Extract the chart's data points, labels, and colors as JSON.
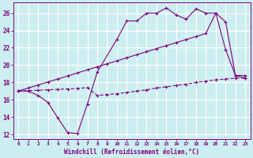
{
  "bg_color": "#cceef0",
  "grid_color": "#ffffff",
  "line_color": "#800080",
  "xlabel": "Windchill (Refroidissement éolien,°C)",
  "ylim": [
    11.5,
    27.2
  ],
  "xlim": [
    -0.5,
    23.5
  ],
  "yticks": [
    12,
    14,
    16,
    18,
    20,
    22,
    24,
    26
  ],
  "x_ticks": [
    0,
    1,
    2,
    3,
    4,
    5,
    6,
    7,
    8,
    9,
    10,
    11,
    12,
    13,
    14,
    15,
    16,
    17,
    18,
    19,
    20,
    21,
    22,
    23
  ],
  "wavy_x": [
    0,
    1,
    2,
    3,
    4,
    5,
    6,
    7,
    8,
    10,
    11,
    12,
    13,
    14,
    15,
    16,
    17,
    18,
    19,
    20,
    21,
    22,
    23
  ],
  "wavy_y": [
    17.0,
    17.0,
    16.5,
    15.7,
    13.9,
    12.2,
    12.1,
    15.5,
    19.2,
    23.0,
    25.1,
    25.1,
    26.0,
    26.0,
    26.6,
    25.8,
    25.3,
    26.5,
    26.0,
    26.0,
    21.8,
    18.8,
    18.8
  ],
  "upper_x": [
    0,
    1,
    2,
    3,
    4,
    5,
    6,
    7,
    8,
    9,
    10,
    11,
    12,
    13,
    14,
    15,
    16,
    17,
    18,
    19,
    20,
    21,
    22,
    23
  ],
  "upper_y": [
    17.0,
    17.35,
    17.7,
    18.05,
    18.4,
    18.75,
    19.1,
    19.45,
    19.8,
    20.15,
    20.5,
    20.85,
    21.2,
    21.55,
    21.9,
    22.25,
    22.6,
    22.95,
    23.3,
    23.65,
    26.0,
    25.0,
    18.8,
    18.5
  ],
  "lower_x": [
    0,
    1,
    2,
    3,
    4,
    5,
    6,
    7,
    8,
    9,
    10,
    11,
    12,
    13,
    14,
    15,
    16,
    17,
    18,
    19,
    20,
    21,
    22,
    23
  ],
  "lower_y": [
    17.0,
    17.05,
    17.1,
    17.15,
    17.2,
    17.25,
    17.3,
    17.4,
    16.5,
    16.6,
    16.7,
    16.85,
    17.0,
    17.15,
    17.35,
    17.5,
    17.65,
    17.8,
    18.0,
    18.15,
    18.3,
    18.4,
    18.5,
    18.5
  ]
}
